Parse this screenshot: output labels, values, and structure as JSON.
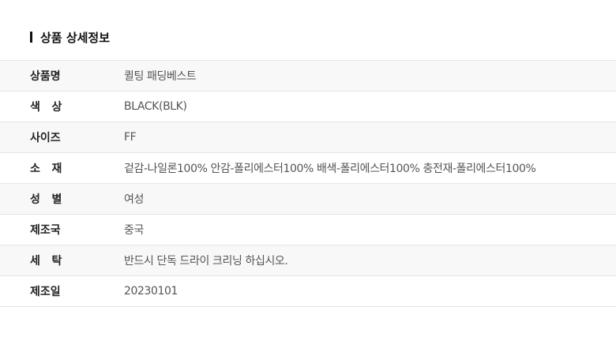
{
  "title": "상품 상세정보",
  "rows": [
    {
      "label": "상품명",
      "value": "퀼팅 패딩베스트"
    },
    {
      "label": "색   상",
      "value": "BLACK(BLK)"
    },
    {
      "label": "사이즈",
      "value": "FF"
    },
    {
      "label": "소   재",
      "value": "겉감-나일론100% 안감-폴리에스터100% 배색-폴리에스터100% 충전재-폴리에스터100%"
    },
    {
      "label": "성   별",
      "value": "여성"
    },
    {
      "label": "제조국",
      "value": "중국"
    },
    {
      "label": "세   탁",
      "value": "반드시 단독 드라이 크리닝 하십시오."
    },
    {
      "label": "제조일",
      "value": "20230101"
    }
  ]
}
